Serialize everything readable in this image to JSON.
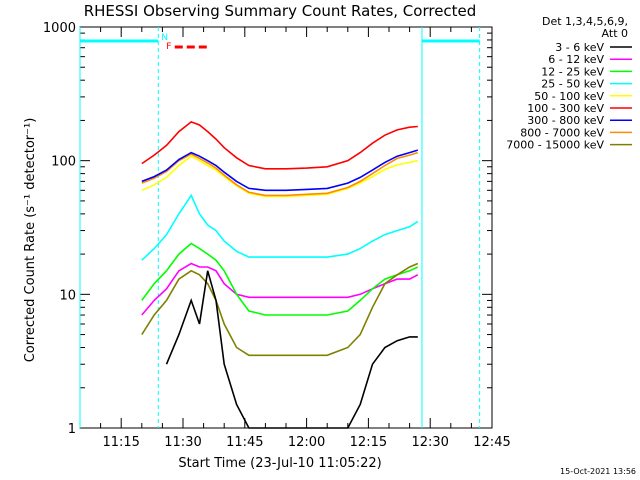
{
  "chart_data": {
    "type": "line",
    "title": "RHESSI Observing Summary Count Rates, Corrected",
    "xlabel": "Start Time (23-Jul-10 11:05:22)",
    "ylabel": "Corrected Count Rate (s⁻¹ detector⁻¹)",
    "y_scale": "log",
    "ylim": [
      1,
      1000
    ],
    "xlim": [
      "11:05",
      "12:45"
    ],
    "x_ticks": [
      "11:15",
      "11:30",
      "11:45",
      "12:00",
      "12:15",
      "12:30",
      "12:45"
    ],
    "y_ticks": [
      "1",
      "10",
      "100",
      "1000"
    ],
    "legend_header": [
      "Det 1,3,4,5,6,9,",
      "Att 0"
    ],
    "legend_position": "right",
    "timestamp": "15-Oct-2021 13:56",
    "flags": {
      "night_markers": [
        "11:05",
        "11:24",
        "12:28",
        "12:42"
      ],
      "night_label": "N",
      "flare_label": "F",
      "flare_segment": [
        "11:28",
        "11:36"
      ]
    },
    "x": [
      "11:17",
      "11:20",
      "11:23",
      "11:26",
      "11:29",
      "11:32",
      "11:34",
      "11:36",
      "11:38",
      "11:40",
      "11:43",
      "11:46",
      "11:50",
      "11:55",
      "12:00",
      "12:05",
      "12:10",
      "12:13",
      "12:16",
      "12:19",
      "12:22",
      "12:25",
      "12:27"
    ],
    "series": [
      {
        "name": "3 - 6 keV",
        "color": "#000000",
        "values": [
          null,
          null,
          null,
          3,
          5,
          9,
          6,
          15,
          9,
          3,
          1.5,
          1,
          1,
          1,
          1,
          1,
          1,
          1.5,
          3,
          4,
          4.5,
          4.8,
          4.8
        ]
      },
      {
        "name": "6 - 12 keV",
        "color": "#ff00ff",
        "values": [
          null,
          7,
          9,
          11,
          15,
          17,
          16,
          16,
          15,
          12,
          10,
          9.5,
          9.5,
          9.5,
          9.5,
          9.5,
          9.5,
          10,
          11,
          12,
          13,
          13,
          14
        ]
      },
      {
        "name": "12 - 25 keV",
        "color": "#00ff00",
        "values": [
          null,
          9,
          12,
          15,
          20,
          24,
          22,
          20,
          18,
          15,
          10,
          7.5,
          7,
          7,
          7,
          7,
          7.5,
          9,
          11,
          13,
          14,
          15,
          16
        ]
      },
      {
        "name": "25 - 50 keV",
        "color": "#00ffff",
        "values": [
          null,
          18,
          22,
          28,
          40,
          55,
          40,
          33,
          30,
          25,
          21,
          19,
          19,
          19,
          19,
          19,
          20,
          22,
          25,
          28,
          30,
          32,
          35
        ]
      },
      {
        "name": "50 - 100 keV",
        "color": "#ffff00",
        "values": [
          null,
          60,
          66,
          75,
          92,
          108,
          100,
          92,
          85,
          76,
          65,
          57,
          54,
          54,
          55,
          56,
          62,
          68,
          76,
          86,
          93,
          97,
          100
        ]
      },
      {
        "name": "100 - 300 keV",
        "color": "#ff0000",
        "values": [
          null,
          95,
          110,
          130,
          165,
          195,
          185,
          165,
          145,
          125,
          105,
          92,
          87,
          87,
          88,
          90,
          100,
          115,
          135,
          155,
          170,
          178,
          180
        ]
      },
      {
        "name": "300 - 800 keV",
        "color": "#0000ff",
        "values": [
          null,
          70,
          76,
          85,
          102,
          115,
          108,
          100,
          92,
          82,
          70,
          62,
          60,
          60,
          61,
          62,
          68,
          75,
          85,
          97,
          108,
          115,
          120
        ]
      },
      {
        "name": "800 - 7000 keV",
        "color": "#ff8c00",
        "values": [
          null,
          68,
          74,
          83,
          100,
          112,
          104,
          96,
          88,
          78,
          66,
          58,
          55,
          55,
          56,
          57,
          63,
          70,
          80,
          92,
          104,
          110,
          115
        ]
      },
      {
        "name": "7000 - 15000 keV",
        "color": "#808000",
        "values": [
          null,
          5,
          7,
          9,
          13,
          15,
          14,
          12,
          9,
          6,
          4,
          3.5,
          3.5,
          3.5,
          3.5,
          3.5,
          4,
          5,
          8,
          12,
          14,
          16,
          17
        ]
      }
    ]
  }
}
